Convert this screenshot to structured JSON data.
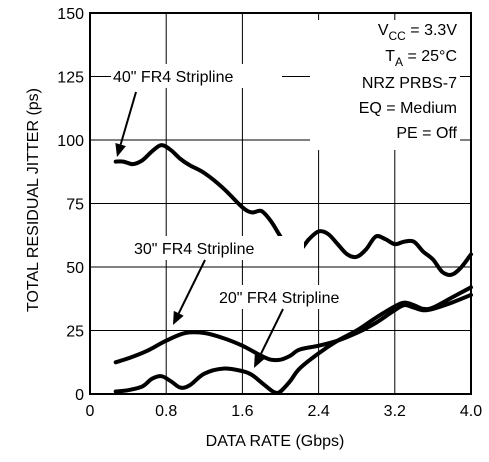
{
  "chart_data": {
    "type": "line",
    "title": "",
    "xlabel": "DATA RATE (Gbps)",
    "ylabel": "TOTAL RESIDUAL JITTER (ps)",
    "xlim": [
      0,
      4.0
    ],
    "ylim": [
      0,
      150
    ],
    "xticks": [
      0,
      0.8,
      1.6,
      2.4,
      3.2,
      4.0
    ],
    "xtick_labels": [
      "0",
      "0.8",
      "1.6",
      "2.4",
      "3.2",
      "4.0"
    ],
    "yticks": [
      0,
      25,
      50,
      75,
      100,
      125,
      150
    ],
    "ytick_labels": [
      "0",
      "25",
      "50",
      "75",
      "100",
      "125",
      "150"
    ],
    "grid": true,
    "conditions": [
      {
        "id": "vcc",
        "main": "V",
        "sub": "CC",
        "rest": " = 3.3V"
      },
      {
        "id": "ta",
        "main": "T",
        "sub": "A",
        "rest": " = 25°C"
      },
      {
        "id": "pattern",
        "main": "NRZ PRBS-7",
        "sub": "",
        "rest": ""
      },
      {
        "id": "eq",
        "main": "EQ = Medium",
        "sub": "",
        "rest": ""
      },
      {
        "id": "pe",
        "main": "PE = Off",
        "sub": "",
        "rest": ""
      }
    ],
    "series": [
      {
        "name": "40\" FR4 Stripline",
        "x": [
          0.27,
          0.35,
          0.45,
          0.55,
          0.65,
          0.75,
          0.85,
          0.95,
          1.05,
          1.2,
          1.4,
          1.6,
          1.7,
          1.8,
          1.9,
          2.0,
          2.1,
          2.2,
          2.3,
          2.4,
          2.5,
          2.6,
          2.7,
          2.8,
          2.9,
          3.0,
          3.1,
          3.2,
          3.3,
          3.4,
          3.5,
          3.6,
          3.7,
          3.8,
          3.9,
          4.0
        ],
        "values": [
          91.5,
          91.5,
          90.5,
          92,
          95.5,
          98,
          96,
          92.5,
          90,
          87,
          81,
          73.5,
          71.5,
          72,
          68,
          62,
          57,
          56.5,
          61,
          64,
          63,
          59,
          55,
          54,
          57,
          62,
          61,
          59,
          60,
          60,
          56,
          53,
          48,
          47,
          50,
          55
        ]
      },
      {
        "name": "30\" FR4 Stripline",
        "x": [
          0.27,
          0.4,
          0.6,
          0.8,
          1.0,
          1.2,
          1.4,
          1.6,
          1.8,
          1.9,
          2.0,
          2.1,
          2.2,
          2.4,
          2.6,
          2.8,
          3.0,
          3.2,
          3.3,
          3.4,
          3.5,
          3.6,
          3.8,
          4.0
        ],
        "values": [
          12.5,
          14,
          17,
          21,
          24,
          24,
          22,
          19,
          15,
          13.5,
          13.5,
          15,
          17.5,
          19,
          21,
          24,
          28,
          33,
          35,
          34,
          33,
          33.5,
          36,
          39
        ]
      },
      {
        "name": "20\" FR4 Stripline",
        "x": [
          0.27,
          0.4,
          0.55,
          0.65,
          0.75,
          0.85,
          0.95,
          1.05,
          1.2,
          1.4,
          1.6,
          1.7,
          1.8,
          1.9,
          1.95,
          2.0,
          2.1,
          2.2,
          2.4,
          2.6,
          2.8,
          3.0,
          3.2,
          3.3,
          3.4,
          3.5,
          3.6,
          3.8,
          4.0
        ],
        "values": [
          1,
          1.5,
          3,
          6,
          7,
          5,
          2.5,
          3.5,
          8,
          10,
          9,
          7.5,
          4.5,
          1.5,
          0.5,
          1,
          5,
          10,
          16,
          21,
          25,
          30,
          34.5,
          36,
          35,
          33.5,
          34,
          38,
          42
        ]
      }
    ]
  }
}
